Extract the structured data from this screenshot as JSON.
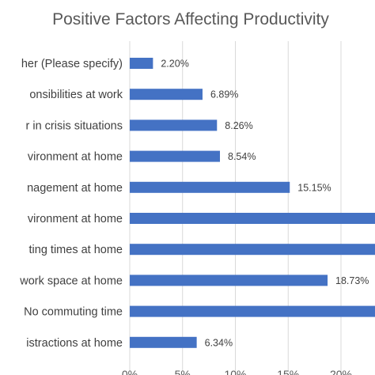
{
  "chart_data": {
    "type": "bar",
    "orientation": "horizontal",
    "title": "Positive Factors Affecting Productivity",
    "categories": [
      "her (Please specify)",
      "onsibilities at work",
      "r in crisis situations",
      "vironment at home",
      "nagement at home",
      "vironment at home",
      "ting times at home",
      "work space at home",
      "No commuting time",
      "istractions at home"
    ],
    "values": [
      2.2,
      6.89,
      8.26,
      8.54,
      15.15,
      24.0,
      24.0,
      18.73,
      24.0,
      6.34
    ],
    "data_labels": [
      "2.20%",
      "6.89%",
      "8.26%",
      "8.54%",
      "15.15%",
      "",
      "",
      "18.73%",
      "",
      "6.34%"
    ],
    "x_ticks": [
      "0%",
      "5%",
      "10%",
      "15%",
      "20%"
    ],
    "xlim": [
      0,
      24
    ],
    "grid": true,
    "bar_color": "#4472c4"
  }
}
